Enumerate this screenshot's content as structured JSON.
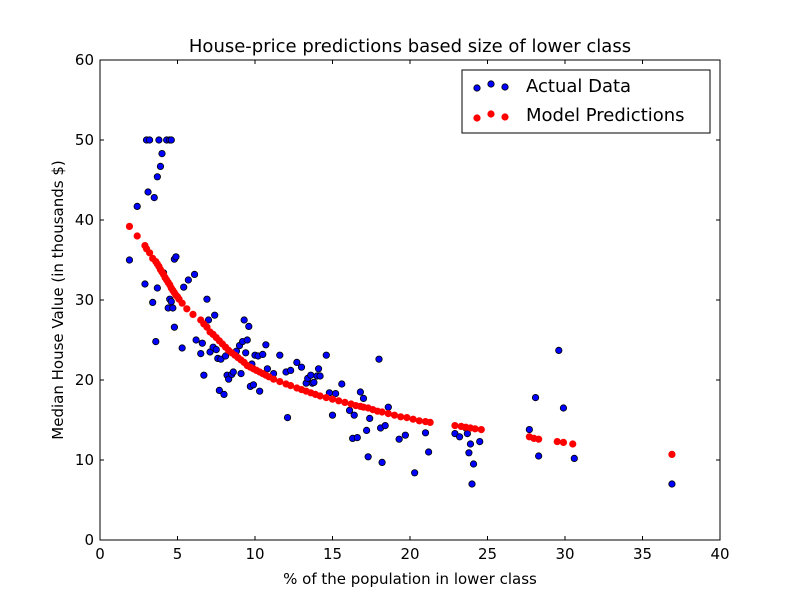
{
  "chart_data": {
    "type": "scatter",
    "title": "House-price predictions based size of lower class",
    "xlabel": "% of the population in lower class",
    "ylabel": "Median House Value (in thousands $)",
    "xlim": [
      0,
      40
    ],
    "ylim": [
      0,
      60
    ],
    "x_ticks": [
      0,
      5,
      10,
      15,
      20,
      25,
      30,
      35,
      40
    ],
    "y_ticks": [
      0,
      10,
      20,
      30,
      40,
      50,
      60
    ],
    "x_tick_labels": [
      "0",
      "5",
      "10",
      "15",
      "20",
      "25",
      "30",
      "35",
      "40"
    ],
    "y_tick_labels": [
      "0",
      "10",
      "20",
      "30",
      "40",
      "50",
      "60"
    ],
    "grid": false,
    "legend_position": "top-right",
    "series": [
      {
        "name": "Actual Data",
        "color": "#0000ff",
        "edgecolor": "#000000",
        "x": [
          1.9,
          2.4,
          2.9,
          3.0,
          3.1,
          3.2,
          3.4,
          3.5,
          3.6,
          3.7,
          3.7,
          3.8,
          3.9,
          4.0,
          4.1,
          4.3,
          4.4,
          4.5,
          4.5,
          4.6,
          4.6,
          4.7,
          4.8,
          4.8,
          4.9,
          5.3,
          5.4,
          5.7,
          6.1,
          6.2,
          6.5,
          6.6,
          6.7,
          6.9,
          7.0,
          7.1,
          7.3,
          7.4,
          7.5,
          7.6,
          7.7,
          7.8,
          8.0,
          8.1,
          8.2,
          8.3,
          8.5,
          8.6,
          8.8,
          9.0,
          9.1,
          9.2,
          9.3,
          9.4,
          9.5,
          9.6,
          9.7,
          9.8,
          9.9,
          10.0,
          10.2,
          10.3,
          10.5,
          10.7,
          10.8,
          11.2,
          11.6,
          12.0,
          12.1,
          12.3,
          12.7,
          13.0,
          13.3,
          13.4,
          13.6,
          13.7,
          13.8,
          14.0,
          14.1,
          14.2,
          14.6,
          14.8,
          15.0,
          15.2,
          15.6,
          16.1,
          16.3,
          16.4,
          16.6,
          16.8,
          17.0,
          17.2,
          17.3,
          17.4,
          18.0,
          18.1,
          18.2,
          18.4,
          18.6,
          19.3,
          19.7,
          20.3,
          21.0,
          21.2,
          22.9,
          23.2,
          23.6,
          23.7,
          23.8,
          23.9,
          24.0,
          24.1,
          24.5,
          27.7,
          28.1,
          28.3,
          29.6,
          29.9,
          30.6,
          36.9
        ],
        "y": [
          35.0,
          41.7,
          32.0,
          50.0,
          43.5,
          50.0,
          29.7,
          42.8,
          24.8,
          31.5,
          45.4,
          50.0,
          46.7,
          48.3,
          33.4,
          50.0,
          29.0,
          50.0,
          30.1,
          29.8,
          50.0,
          29.0,
          35.1,
          26.6,
          35.4,
          24.0,
          31.6,
          32.5,
          33.2,
          25.0,
          23.3,
          24.6,
          20.6,
          30.1,
          27.5,
          23.5,
          24.1,
          28.1,
          23.8,
          22.7,
          18.7,
          22.6,
          18.2,
          23.0,
          20.6,
          20.1,
          20.7,
          21.0,
          23.6,
          24.3,
          20.8,
          24.8,
          27.5,
          23.4,
          25.0,
          26.7,
          19.2,
          22.0,
          19.4,
          23.1,
          23.0,
          18.6,
          23.2,
          24.4,
          21.4,
          20.8,
          23.1,
          21.0,
          15.3,
          21.2,
          22.2,
          21.6,
          19.6,
          20.2,
          20.6,
          19.6,
          19.7,
          20.5,
          21.4,
          20.5,
          23.1,
          18.4,
          15.6,
          18.3,
          19.5,
          16.2,
          12.7,
          15.6,
          12.8,
          18.5,
          17.7,
          13.7,
          10.4,
          15.2,
          22.6,
          14.0,
          9.7,
          14.3,
          16.6,
          12.6,
          13.1,
          8.4,
          13.4,
          11.0,
          13.3,
          12.9,
          14.0,
          13.3,
          10.9,
          12.0,
          7.0,
          9.5,
          12.3,
          13.8,
          17.8,
          10.5,
          23.7,
          16.5,
          10.2,
          7.0
        ]
      },
      {
        "name": "Model Predictions",
        "color": "#ff0000",
        "edgecolor": "#ff0000",
        "x": [
          1.9,
          2.4,
          2.9,
          3.0,
          3.2,
          3.4,
          3.6,
          3.7,
          3.8,
          3.9,
          4.0,
          4.1,
          4.2,
          4.3,
          4.4,
          4.5,
          4.6,
          4.7,
          4.8,
          4.9,
          5.0,
          5.1,
          5.3,
          5.6,
          6.0,
          6.5,
          6.7,
          6.9,
          7.1,
          7.3,
          7.5,
          7.7,
          7.9,
          8.1,
          8.3,
          8.5,
          8.7,
          8.9,
          9.1,
          9.3,
          9.5,
          9.7,
          9.9,
          10.1,
          10.3,
          10.5,
          10.7,
          10.9,
          11.2,
          11.6,
          12.0,
          12.3,
          12.7,
          13.0,
          13.3,
          13.6,
          13.9,
          14.2,
          14.6,
          15.0,
          15.4,
          15.8,
          16.2,
          16.5,
          16.8,
          17.0,
          17.3,
          17.6,
          17.9,
          18.2,
          18.6,
          19.0,
          19.4,
          19.8,
          20.2,
          20.6,
          21.0,
          21.3,
          22.9,
          23.3,
          23.6,
          23.9,
          24.2,
          24.6,
          27.7,
          28.0,
          28.3,
          29.5,
          29.9,
          30.5,
          36.9
        ],
        "y": [
          39.2,
          38.0,
          36.8,
          36.4,
          35.9,
          35.2,
          34.8,
          34.5,
          34.2,
          33.8,
          33.5,
          33.2,
          32.8,
          32.5,
          32.2,
          31.9,
          31.5,
          31.2,
          30.9,
          30.6,
          30.4,
          30.1,
          29.6,
          28.9,
          28.2,
          27.5,
          27.0,
          26.6,
          26.0,
          25.7,
          25.3,
          24.9,
          24.5,
          24.1,
          23.7,
          23.4,
          23.1,
          22.8,
          22.5,
          22.2,
          21.8,
          21.6,
          21.4,
          21.2,
          21.0,
          20.8,
          20.6,
          20.4,
          20.1,
          19.8,
          19.5,
          19.3,
          19.0,
          18.8,
          18.6,
          18.4,
          18.2,
          18.0,
          17.8,
          17.6,
          17.4,
          17.2,
          17.0,
          16.8,
          16.7,
          16.6,
          16.5,
          16.3,
          16.1,
          16.0,
          15.8,
          15.6,
          15.4,
          15.3,
          15.1,
          14.9,
          14.8,
          14.7,
          14.3,
          14.2,
          14.1,
          14.0,
          13.9,
          13.8,
          12.9,
          12.7,
          12.6,
          12.3,
          12.2,
          12.0,
          10.7
        ]
      }
    ]
  }
}
